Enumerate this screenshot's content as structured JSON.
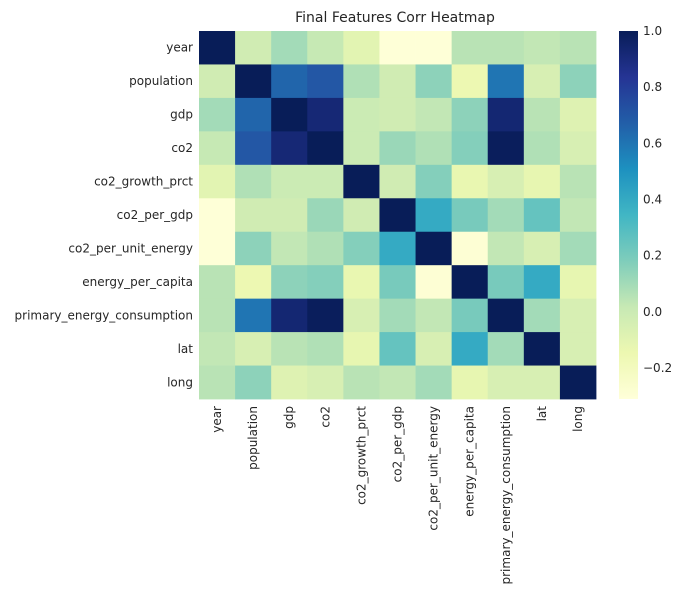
{
  "chart_data": {
    "type": "heatmap",
    "title": "Final Features Corr Heatmap",
    "labels": [
      "year",
      "population",
      "gdp",
      "co2",
      "co2_growth_prct",
      "co2_per_gdp",
      "co2_per_unit_energy",
      "energy_per_capita",
      "primary_energy_consumption",
      "lat",
      "long"
    ],
    "matrix": [
      [
        1.0,
        -0.02,
        0.1,
        0.02,
        -0.1,
        -0.3,
        -0.3,
        0.05,
        0.05,
        0.03,
        0.05
      ],
      [
        -0.02,
        1.0,
        0.65,
        0.7,
        0.07,
        -0.02,
        0.15,
        -0.15,
        0.6,
        -0.05,
        0.15
      ],
      [
        0.1,
        0.65,
        1.0,
        0.92,
        0.0,
        -0.02,
        0.03,
        0.15,
        0.93,
        0.05,
        -0.08
      ],
      [
        0.02,
        0.7,
        0.92,
        1.0,
        0.0,
        0.12,
        0.07,
        0.17,
        0.99,
        0.07,
        -0.05
      ],
      [
        -0.1,
        0.07,
        0.0,
        0.0,
        1.0,
        -0.02,
        0.17,
        -0.13,
        -0.05,
        -0.12,
        0.05
      ],
      [
        -0.3,
        -0.02,
        -0.02,
        0.12,
        -0.02,
        1.0,
        0.4,
        0.2,
        0.1,
        0.25,
        0.03
      ],
      [
        -0.3,
        0.15,
        0.03,
        0.07,
        0.17,
        0.4,
        1.0,
        -0.29,
        0.03,
        -0.05,
        0.1
      ],
      [
        0.05,
        -0.15,
        0.15,
        0.17,
        -0.13,
        0.2,
        -0.29,
        1.0,
        0.2,
        0.4,
        -0.12
      ],
      [
        0.05,
        0.6,
        0.93,
        0.99,
        -0.05,
        0.1,
        0.03,
        0.2,
        1.0,
        0.1,
        -0.05
      ],
      [
        0.03,
        -0.05,
        0.05,
        0.07,
        -0.12,
        0.25,
        -0.05,
        0.4,
        0.1,
        1.0,
        -0.05
      ],
      [
        0.05,
        0.15,
        -0.08,
        -0.05,
        0.05,
        0.03,
        0.1,
        -0.12,
        -0.05,
        -0.05,
        1.0
      ]
    ],
    "vmin": -0.31,
    "vmax": 1.0,
    "colormap": "YlGnBu",
    "colorbar": {
      "ticks": [
        1.0,
        0.8,
        0.6,
        0.4,
        0.2,
        0.0,
        -0.2
      ],
      "tick_labels": [
        "1.0",
        "0.8",
        "0.6",
        "0.4",
        "0.2",
        "0.0",
        "−0.2"
      ]
    },
    "grid": false
  }
}
